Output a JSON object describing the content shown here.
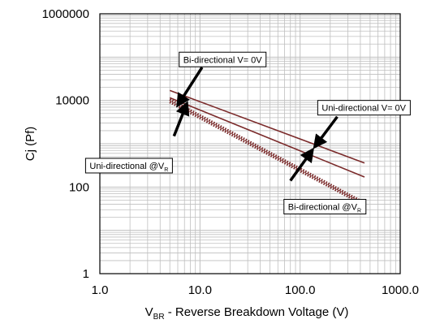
{
  "chart_data": {
    "type": "line",
    "title": "",
    "xlabel": {
      "main": "V",
      "sub": "BR",
      "rest": " - Reverse Breakdown Voltage (V)"
    },
    "ylabel": "Cj (Pf)",
    "x_scale": "log",
    "y_scale": "log",
    "xlim": [
      1,
      1000
    ],
    "ylim": [
      1,
      1000000
    ],
    "grid": true,
    "x_ticks": [
      "1.0",
      "10.0",
      "100.0",
      "1000.0"
    ],
    "y_ticks": [
      "1",
      "100",
      "10000",
      "1000000"
    ],
    "series": [
      {
        "name": "Uni-directional V=0V",
        "style": "solid",
        "x": [
          5,
          440
        ],
        "y": [
          17000,
          360
        ]
      },
      {
        "name": "Bi-directional V=0V",
        "style": "solid",
        "x": [
          5,
          440
        ],
        "y": [
          11500,
          170
        ]
      },
      {
        "name": "Uni-directional @VR",
        "style": "dotted",
        "x": [
          5,
          440
        ],
        "y": [
          10500,
          43
        ]
      },
      {
        "name": "Bi-directional @VR",
        "style": "dotted",
        "x": [
          5,
          440
        ],
        "y": [
          9200,
          38
        ]
      }
    ],
    "annotations": [
      {
        "text": "Bi-directional V= 0V",
        "sub": "",
        "box_x": 6.2,
        "box_y": 130000,
        "arrow_from": [
          10.5,
          58000
        ],
        "arrow_to": [
          6.0,
          7700
        ]
      },
      {
        "text": "Uni-directional V= 0V",
        "sub": "",
        "box_x": 150,
        "box_y": 10000,
        "arrow_from": [
          235,
          4200
        ],
        "arrow_to": [
          140,
          850
        ]
      },
      {
        "text": "Uni-directional @V",
        "sub": "R",
        "box_x": 0.72,
        "box_y": 460,
        "arrow_from": [
          5.5,
          1500
        ],
        "arrow_to": [
          7.4,
          8500
        ]
      },
      {
        "text": "Bi-directional @V",
        "sub": "R",
        "box_x": 69,
        "box_y": 52,
        "arrow_from": [
          80,
          140
        ],
        "arrow_to": [
          133,
          720
        ]
      }
    ],
    "colors": {
      "line": "#7b2b2b",
      "grid": "#bfbfbf",
      "arrow": "#000000",
      "axis": "#000000"
    }
  }
}
